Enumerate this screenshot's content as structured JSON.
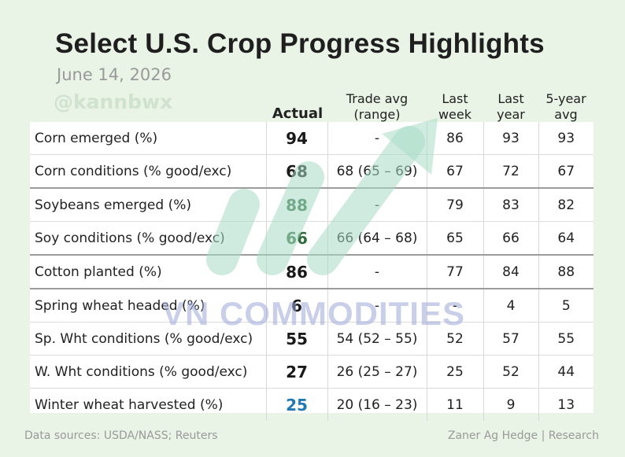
{
  "title": "Select U.S. Crop Progress Highlights",
  "date": "June 14, 2026",
  "watermark_handle": "@kannbwx",
  "watermark_brand": "VN COMMODITIES",
  "headers": {
    "actual": "Actual",
    "trade_avg_1": "Trade avg",
    "trade_avg_2": "(range)",
    "last_week_1": "Last",
    "last_week_2": "week",
    "last_year_1": "Last",
    "last_year_2": "year",
    "five_year_1": "5-year",
    "five_year_2": "avg"
  },
  "rows": [
    {
      "label": "Corn emerged (%)",
      "actual": "94",
      "actual_color": "#1a1a1a",
      "trade": "-",
      "last_week": "86",
      "last_year": "93",
      "five_year": "93"
    },
    {
      "label": "Corn conditions (% good/exc)",
      "actual": "68",
      "actual_color": "#1a1a1a",
      "trade": "68 (65 – 69)",
      "last_week": "67",
      "last_year": "72",
      "five_year": "67"
    },
    {
      "label": "Soybeans emerged (%)",
      "actual": "88",
      "actual_color": "#2f6b3c",
      "trade": "-",
      "last_week": "79",
      "last_year": "83",
      "five_year": "82"
    },
    {
      "label": "Soy conditions (% good/exc)",
      "actual": "66",
      "actual_color": "#2f6b3c",
      "trade": "66 (64 – 68)",
      "last_week": "65",
      "last_year": "66",
      "five_year": "64"
    },
    {
      "label": "Cotton planted (%)",
      "actual": "86",
      "actual_color": "#1a1a1a",
      "trade": "-",
      "last_week": "77",
      "last_year": "84",
      "five_year": "88"
    },
    {
      "label": "Spring wheat headed (%)",
      "actual": "6",
      "actual_color": "#1a1a1a",
      "trade": "-",
      "last_week": "-",
      "last_year": "4",
      "five_year": "5"
    },
    {
      "label": "Sp. Wht conditions (% good/exc)",
      "actual": "55",
      "actual_color": "#1a1a1a",
      "trade": "54 (52 – 55)",
      "last_week": "52",
      "last_year": "57",
      "five_year": "55"
    },
    {
      "label": "W. Wht conditions (% good/exc)",
      "actual": "27",
      "actual_color": "#1a1a1a",
      "trade": "26 (25 – 27)",
      "last_week": "25",
      "last_year": "52",
      "five_year": "44"
    },
    {
      "label": "Winter wheat harvested (%)",
      "actual": "25",
      "actual_color": "#1f78b4",
      "trade": "20 (16 – 23)",
      "last_week": "11",
      "last_year": "9",
      "five_year": "13"
    }
  ],
  "footer": {
    "sources": "Data sources: USDA/NASS; Reuters",
    "credit": "Zaner Ag Hedge | Research"
  }
}
